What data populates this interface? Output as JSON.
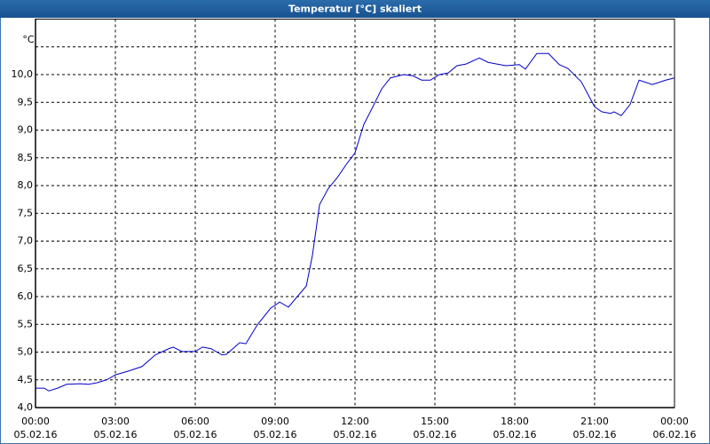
{
  "chart_data": {
    "type": "line",
    "title": "Temperatur [°C] skaliert",
    "y_unit": "°C",
    "color": "#0000cc",
    "grid": true,
    "x": [
      0,
      0.33,
      0.5,
      0.83,
      1.17,
      1.67,
      2,
      2.33,
      2.67,
      3,
      3.5,
      4,
      4.5,
      5,
      5.17,
      5.5,
      6,
      6.27,
      6.6,
      7,
      7.17,
      7.67,
      7.9,
      8.33,
      8.83,
      9.17,
      9.5,
      10.17,
      10.4,
      10.67,
      11,
      11.33,
      11.67,
      12,
      12.33,
      12.67,
      13,
      13.33,
      13.83,
      14.17,
      14.5,
      14.83,
      15.17,
      15.5,
      15.83,
      16.17,
      16.67,
      17,
      17.33,
      17.67,
      18.17,
      18.4,
      18.83,
      19.27,
      19.67,
      20,
      20.5,
      21,
      21.27,
      21.6,
      21.73,
      22,
      22.33,
      22.67,
      23.17,
      23.67,
      24
    ],
    "values": [
      4.35,
      4.35,
      4.3,
      4.35,
      4.42,
      4.43,
      4.42,
      4.45,
      4.5,
      4.59,
      4.66,
      4.74,
      4.95,
      5.06,
      5.09,
      5.01,
      5.01,
      5.09,
      5.06,
      4.95,
      4.96,
      5.17,
      5.15,
      5.49,
      5.79,
      5.9,
      5.81,
      6.19,
      6.74,
      7.66,
      7.95,
      8.14,
      8.38,
      8.59,
      9.1,
      9.42,
      9.74,
      9.94,
      10.0,
      9.98,
      9.9,
      9.9,
      10.0,
      10.03,
      10.16,
      10.19,
      10.3,
      10.22,
      10.19,
      10.16,
      10.18,
      10.1,
      10.38,
      10.38,
      10.18,
      10.11,
      9.87,
      9.42,
      9.33,
      9.3,
      9.33,
      9.26,
      9.46,
      9.9,
      9.82,
      9.9,
      9.94
    ],
    "xlim": [
      0,
      24
    ],
    "xticks": [
      {
        "value": 0,
        "label": "00:00"
      },
      {
        "value": 3,
        "label": "03:00"
      },
      {
        "value": 6,
        "label": "06:00"
      },
      {
        "value": 9,
        "label": "09:00"
      },
      {
        "value": 12,
        "label": "12:00"
      },
      {
        "value": 15,
        "label": "15:00"
      },
      {
        "value": 18,
        "label": "18:00"
      },
      {
        "value": 21,
        "label": "21:00"
      },
      {
        "value": 24,
        "label": "00:00"
      }
    ],
    "xtick_dates": [
      "05.02.16",
      "05.02.16",
      "05.02.16",
      "05.02.16",
      "05.02.16",
      "05.02.16",
      "05.02.16",
      "05.02.16",
      "06.02.16"
    ],
    "ylim": [
      4,
      11
    ],
    "yticks": [
      {
        "value": 4,
        "label": "4,0"
      },
      {
        "value": 4.5,
        "label": "4,5"
      },
      {
        "value": 5,
        "label": "5,0"
      },
      {
        "value": 5.5,
        "label": "5,5"
      },
      {
        "value": 6,
        "label": "6,0"
      },
      {
        "value": 6.5,
        "label": "6,5"
      },
      {
        "value": 7,
        "label": "7,0"
      },
      {
        "value": 7.5,
        "label": "7,5"
      },
      {
        "value": 8,
        "label": "8,0"
      },
      {
        "value": 8.5,
        "label": "8,5"
      },
      {
        "value": 9,
        "label": "9,0"
      },
      {
        "value": 9.5,
        "label": "9,5"
      },
      {
        "value": 10,
        "label": "10,0"
      },
      {
        "value": 10.5,
        "label": null
      }
    ]
  }
}
